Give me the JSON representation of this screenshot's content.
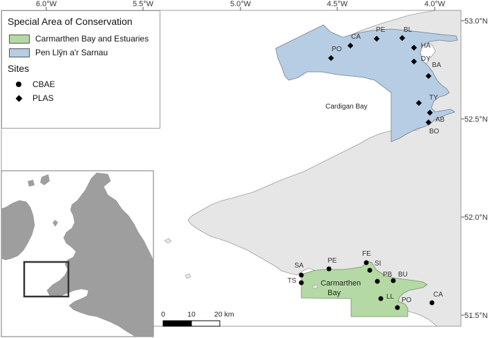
{
  "map": {
    "lon_ticks": [
      "6.0°W",
      "5.5°W",
      "5.0°W",
      "4.5°W",
      "4.0°W"
    ],
    "lat_ticks": [
      "53.0°N",
      "52.5°N",
      "52.0°N",
      "51.5°N"
    ],
    "colors": {
      "land": "#e6e6e6",
      "sea": "#ffffff",
      "coast": "#9a9a9a",
      "carmarthen_sac": "#b5d9a5",
      "pen_llyn_sac": "#b7cde3",
      "inset_land": "#9e9e9e"
    },
    "place_label": "Cardigan Bay",
    "carmarthen_label": [
      "Carmarthen",
      "Bay"
    ],
    "scale_bar": {
      "labels": [
        "0",
        "10",
        "20 km"
      ]
    }
  },
  "legend": {
    "sac_title": "Special Area of Conservation",
    "sac_items": [
      {
        "label": "Carmarthen Bay and Estuaries",
        "color": "#b5d9a5"
      },
      {
        "label": "Pen Llŷn a'r Sarnau",
        "color": "#b7cde3"
      }
    ],
    "sites_title": "Sites",
    "site_types": [
      {
        "label": "CBAE",
        "symbol": "circle"
      },
      {
        "label": "PLAS",
        "symbol": "diamond"
      }
    ]
  },
  "sites": {
    "plas": [
      "PO",
      "CA",
      "PE",
      "BL",
      "HA",
      "DY",
      "BA",
      "TY",
      "AB",
      "BO"
    ],
    "cbae": [
      "SA",
      "TS",
      "PE",
      "FE",
      "SI",
      "PB",
      "BU",
      "LL",
      "PO",
      "CA"
    ]
  }
}
